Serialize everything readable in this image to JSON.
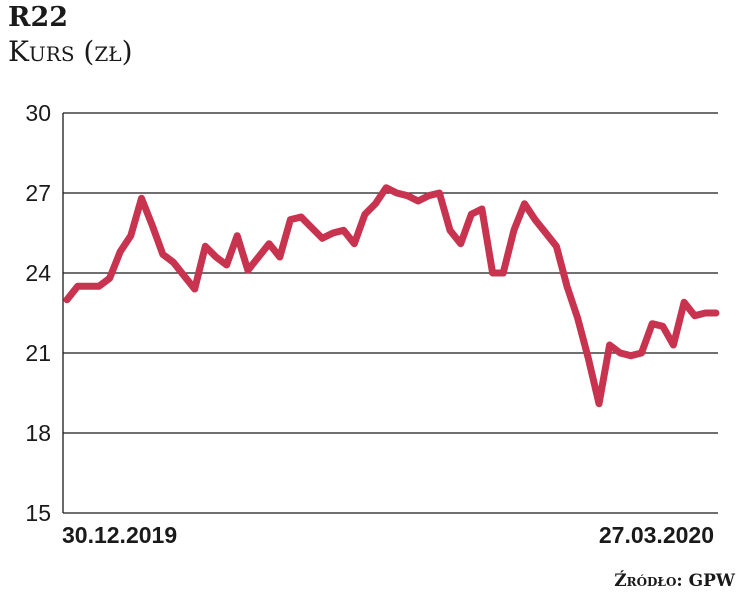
{
  "header": {
    "title": "R22",
    "subtitle": "Kurs (zł)"
  },
  "source": "Źródło: GPW",
  "colors": {
    "line": "#c8344f",
    "grid": "#1a1a1a"
  },
  "chart_data": {
    "type": "line",
    "title": "R22",
    "ylabel": "Kurs (zł)",
    "ylim": [
      15,
      30
    ],
    "yticks": [
      "30",
      "27",
      "24",
      "21",
      "18",
      "15"
    ],
    "xticks": [
      "30.12.2019",
      "27.03.2020"
    ],
    "grid": "horizontal",
    "series": [
      {
        "values": [
          23.0,
          23.5,
          23.5,
          23.5,
          23.8,
          24.8,
          25.4,
          26.8,
          25.8,
          24.7,
          24.4,
          23.9,
          23.4,
          25.0,
          24.6,
          24.3,
          25.4,
          24.1,
          24.6,
          25.1,
          24.6,
          26.0,
          26.1,
          25.7,
          25.3,
          25.5,
          25.6,
          25.1,
          26.2,
          26.6,
          27.2,
          27.0,
          26.9,
          26.7,
          26.9,
          27.0,
          25.6,
          25.1,
          26.2,
          26.4,
          24.0,
          24.0,
          25.6,
          26.6,
          26.0,
          25.5,
          25.0,
          23.5,
          22.3,
          20.8,
          19.1,
          21.3,
          21.0,
          20.9,
          21.0,
          22.1,
          22.0,
          21.3,
          22.9,
          22.4,
          22.5,
          22.5
        ]
      }
    ]
  }
}
